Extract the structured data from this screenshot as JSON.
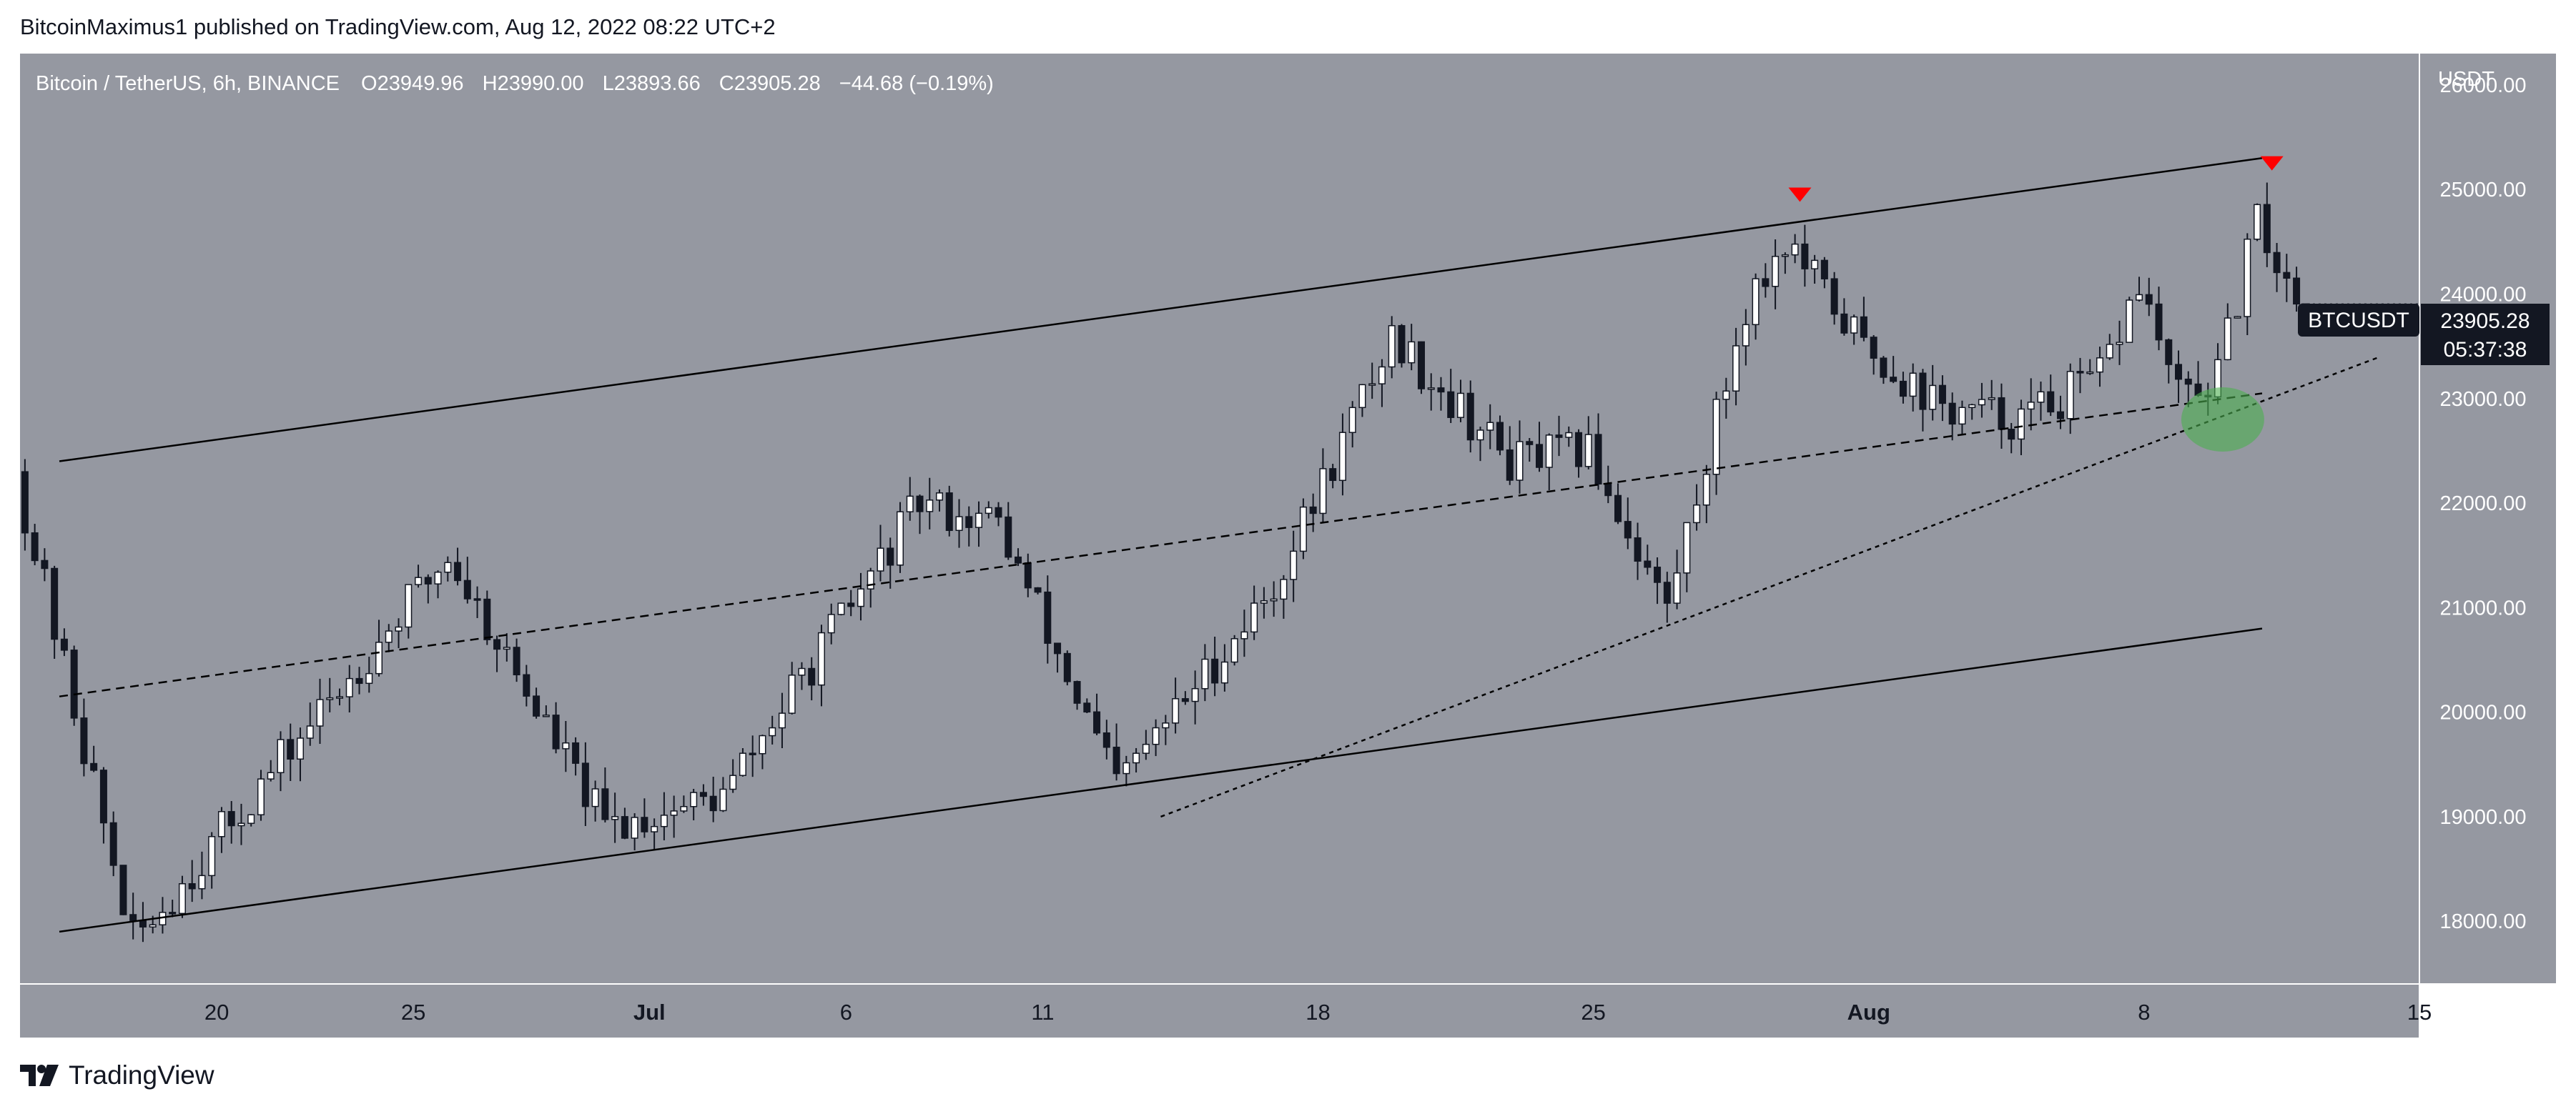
{
  "header": {
    "text": "BitcoinMaximus1 published on TradingView.com, Aug 12, 2022 08:22 UTC+2"
  },
  "footer": {
    "brand": "TradingView"
  },
  "legend": {
    "symbol": "Bitcoin / TetherUS, 6h, BINANCE",
    "o_label": "O",
    "o_value": "23949.96",
    "h_label": "H",
    "h_value": "23990.00",
    "l_label": "L",
    "l_value": "23893.66",
    "c_label": "C",
    "c_value": "23905.28",
    "change": "−44.68 (−0.19%)"
  },
  "price_badge": {
    "ticker": "BTCUSDT",
    "price": "23905.28",
    "countdown": "05:37:38"
  },
  "colors": {
    "plot_bg": "#9598a1",
    "up_candle": "#ffffff",
    "down_candle": "#131722",
    "trendline": "#000000",
    "arrow": "#ff0000",
    "highlight": "#4caf50",
    "badge_bg": "#131722",
    "axis_bg": "#9598a1"
  },
  "icons": {
    "brand_logo": "tradingview-logo-icon"
  },
  "chart_data": {
    "type": "candlestick",
    "symbol": "BTCUSDT",
    "timeframe": "6h",
    "y_axis": {
      "label": "USDT",
      "ticks": [
        18000,
        19000,
        20000,
        21000,
        22000,
        23000,
        24000,
        25000,
        26000
      ],
      "tick_labels": [
        "18000.00",
        "19000.00",
        "20000.00",
        "21000.00",
        "22000.00",
        "23000.00",
        "24000.00",
        "25000.00",
        "26000.00"
      ],
      "range": [
        17400,
        26300
      ]
    },
    "x_axis": {
      "range": [
        "2022-06-15",
        "2022-08-15"
      ],
      "ticks": [
        {
          "date": "2022-06-20",
          "label": "20",
          "bold": false
        },
        {
          "date": "2022-06-25",
          "label": "25",
          "bold": false
        },
        {
          "date": "2022-07-01",
          "label": "Jul",
          "bold": true
        },
        {
          "date": "2022-07-06",
          "label": "6",
          "bold": false
        },
        {
          "date": "2022-07-11",
          "label": "11",
          "bold": false
        },
        {
          "date": "2022-07-18",
          "label": "18",
          "bold": false
        },
        {
          "date": "2022-07-25",
          "label": "25",
          "bold": false
        },
        {
          "date": "2022-08-01",
          "label": "Aug",
          "bold": true
        },
        {
          "date": "2022-08-08",
          "label": "8",
          "bold": false
        },
        {
          "date": "2022-08-15",
          "label": "15",
          "bold": false
        }
      ]
    },
    "key_points": [
      {
        "date": "2022-06-15",
        "price": 22300
      },
      {
        "date": "2022-06-18",
        "price": 17800
      },
      {
        "date": "2022-06-26",
        "price": 21500
      },
      {
        "date": "2022-06-30",
        "price": 18900
      },
      {
        "date": "2022-07-03",
        "price": 19200
      },
      {
        "date": "2022-07-08",
        "price": 22000
      },
      {
        "date": "2022-07-10",
        "price": 21800
      },
      {
        "date": "2022-07-13",
        "price": 19300
      },
      {
        "date": "2022-07-17",
        "price": 21200
      },
      {
        "date": "2022-07-20",
        "price": 23600
      },
      {
        "date": "2022-07-23",
        "price": 22400
      },
      {
        "date": "2022-07-25",
        "price": 22500
      },
      {
        "date": "2022-07-27",
        "price": 21000
      },
      {
        "date": "2022-07-29",
        "price": 23900
      },
      {
        "date": "2022-07-30",
        "price": 24500
      },
      {
        "date": "2022-08-01",
        "price": 23500
      },
      {
        "date": "2022-08-03",
        "price": 22900
      },
      {
        "date": "2022-08-05",
        "price": 22800
      },
      {
        "date": "2022-08-07",
        "price": 23200
      },
      {
        "date": "2022-08-08",
        "price": 24100
      },
      {
        "date": "2022-08-09",
        "price": 23000
      },
      {
        "date": "2022-08-10",
        "price": 23200
      },
      {
        "date": "2022-08-11",
        "price": 24700
      },
      {
        "date": "2022-08-12",
        "price": 23905.28
      }
    ],
    "trendlines": [
      {
        "style": "solid",
        "from": {
          "date": "2022-06-16",
          "price": 22400
        },
        "to": {
          "date": "2022-08-11",
          "price": 25300
        }
      },
      {
        "style": "solid",
        "from": {
          "date": "2022-06-16",
          "price": 17900
        },
        "to": {
          "date": "2022-08-11",
          "price": 20800
        }
      },
      {
        "style": "dashed",
        "from": {
          "date": "2022-06-16",
          "price": 20150
        },
        "to": {
          "date": "2022-08-11",
          "price": 23050
        }
      },
      {
        "style": "dotted",
        "from": {
          "date": "2022-07-14",
          "price": 19000
        },
        "to": {
          "date": "2022-08-14",
          "price": 23400
        }
      }
    ],
    "markers": [
      {
        "type": "down-arrow",
        "date": "2022-07-30",
        "price": 24950
      },
      {
        "type": "down-arrow",
        "date": "2022-08-11",
        "price": 25250
      }
    ],
    "highlight": {
      "shape": "ellipse",
      "date": "2022-08-10",
      "price": 22800
    },
    "last_price": 23905.28
  }
}
